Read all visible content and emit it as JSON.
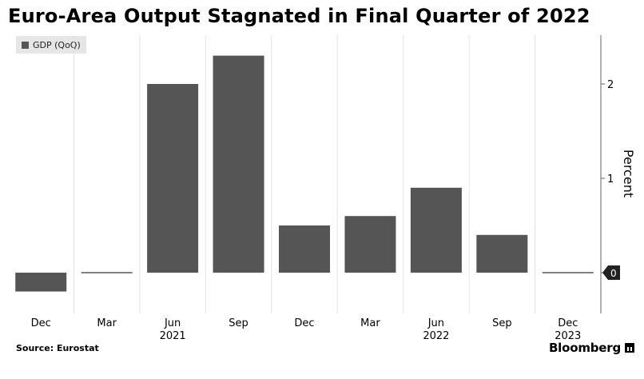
{
  "title": "Euro-Area Output Stagnated in Final Quarter of 2022",
  "source": "Source: Eurostat",
  "brand": "Bloomberg",
  "colors": {
    "bar": "#555555",
    "grid": "#e3e3e3",
    "axis": "#666666",
    "background": "#ffffff"
  },
  "chart_data": {
    "type": "bar",
    "categories": [
      "Dec",
      "Mar",
      "Jun",
      "Sep",
      "Dec",
      "Mar",
      "Jun",
      "Sep",
      "Dec"
    ],
    "year_labels": [
      "",
      "",
      "2021",
      "",
      "",
      "",
      "2022",
      "",
      "2023"
    ],
    "series": [
      {
        "name": "GDP (QoQ)",
        "values": [
          -0.2,
          0.0,
          2.0,
          2.3,
          0.5,
          0.6,
          0.9,
          0.4,
          0.0
        ]
      }
    ],
    "ylabel": "Percent",
    "yticks": [
      0,
      1,
      2
    ],
    "ylim": [
      -0.45,
      2.55
    ],
    "last_value_label": "0",
    "y_axis_side": "right",
    "legend_position": "top-left",
    "grid": "vertical"
  }
}
